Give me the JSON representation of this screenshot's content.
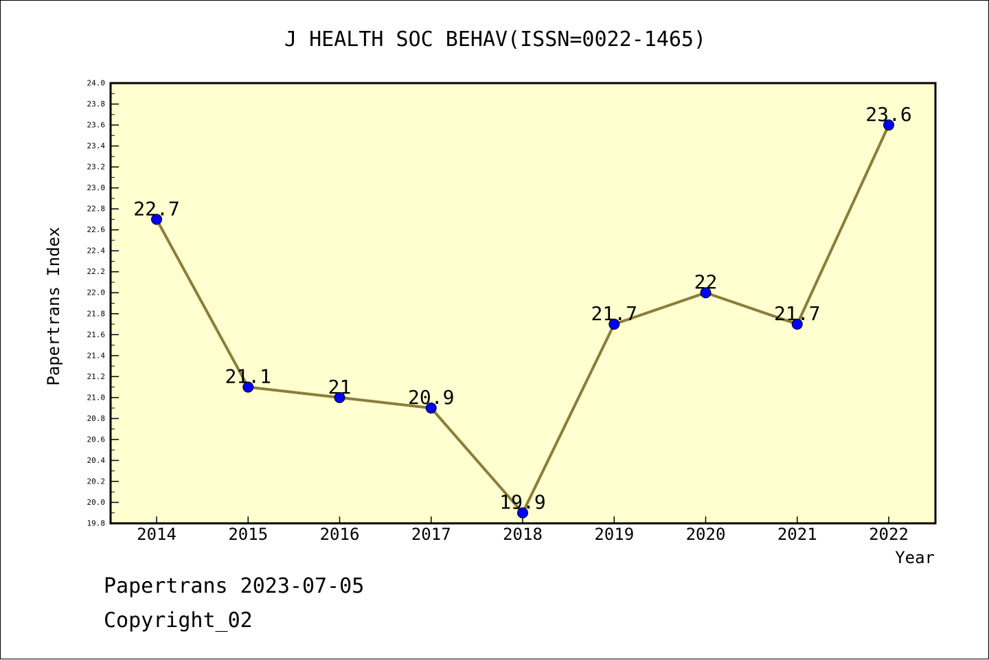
{
  "chart_data": {
    "type": "line",
    "title": "J HEALTH SOC BEHAV(ISSN=0022-1465)",
    "xlabel": "Year",
    "ylabel": "Papertrans Index",
    "x": [
      "2014",
      "2015",
      "2016",
      "2017",
      "2018",
      "2019",
      "2020",
      "2021",
      "2022"
    ],
    "series": [
      {
        "values": [
          22.7,
          21.1,
          21.0,
          20.9,
          19.9,
          21.7,
          22.0,
          21.7,
          23.6
        ],
        "point_labels": [
          "22.7",
          "21.1",
          "21",
          "20.9",
          "19.9",
          "21.7",
          "22",
          "21.7",
          "23.6"
        ]
      }
    ],
    "ylim": [
      19.8,
      24.0
    ],
    "y_major_ticks": [
      "19.8",
      "20.0",
      "20.2",
      "20.4",
      "20.6",
      "20.8",
      "21.0",
      "21.2",
      "21.4",
      "21.6",
      "21.8",
      "22.0",
      "22.2",
      "22.4",
      "22.6",
      "22.8",
      "23.0",
      "23.2",
      "23.4",
      "23.6",
      "23.8",
      "24.0"
    ],
    "grid": false,
    "colors": {
      "plot_background": "#ffffd0",
      "line": "#8b7d3a",
      "marker": "#0000ff"
    }
  },
  "footer": {
    "line1": "Papertrans 2023-07-05",
    "line2": "Copyright_02"
  }
}
